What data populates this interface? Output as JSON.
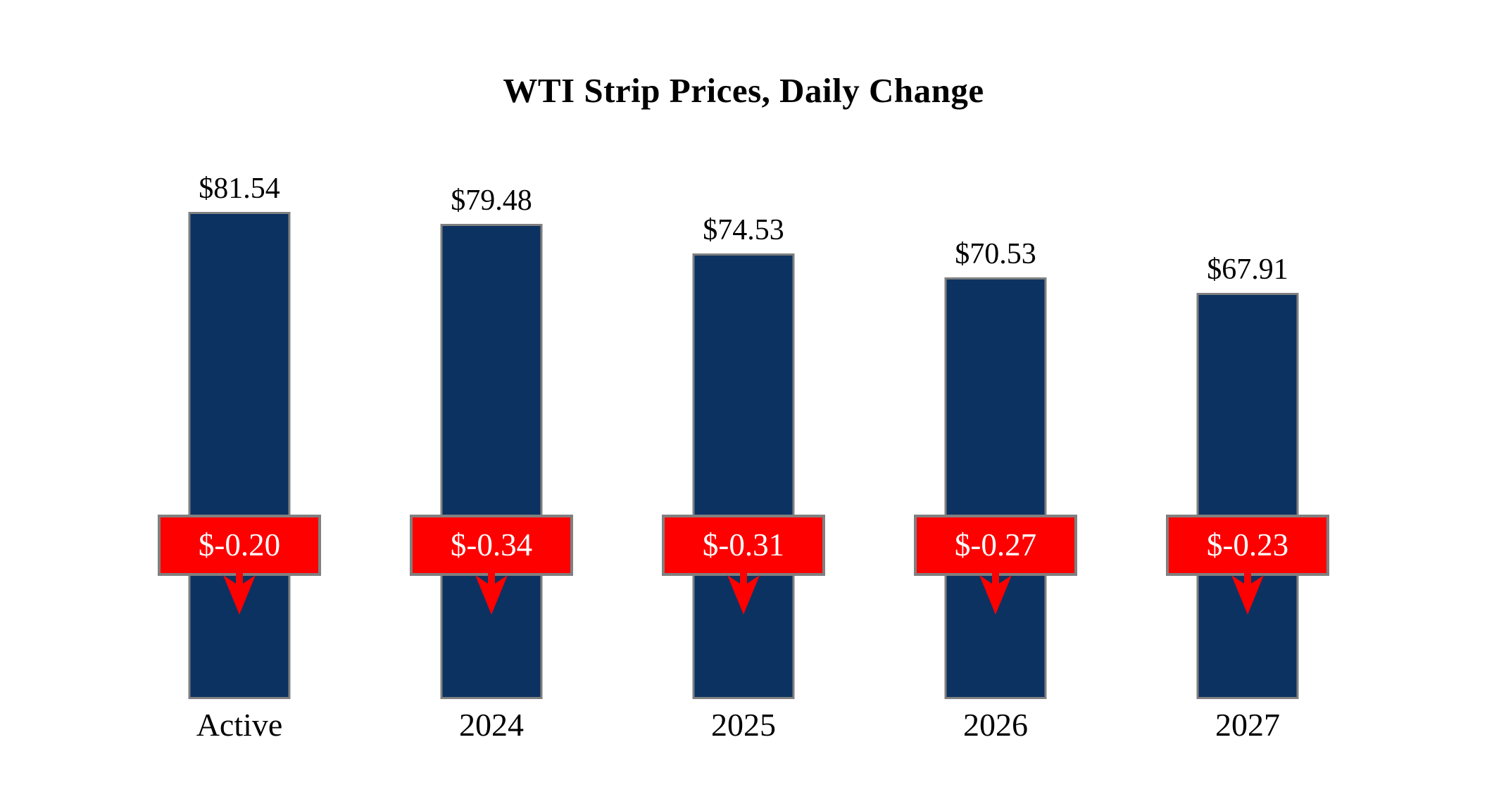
{
  "chart_data": {
    "type": "bar",
    "title": "WTI Strip Prices, Daily Change",
    "categories": [
      "Active",
      "2024",
      "2025",
      "2026",
      "2027"
    ],
    "series": [
      {
        "name": "strip_price",
        "values": [
          81.54,
          79.48,
          74.53,
          70.53,
          67.91
        ],
        "labels": [
          "$81.54",
          "$79.48",
          "$74.53",
          "$70.53",
          "$67.91"
        ]
      },
      {
        "name": "daily_change",
        "values": [
          -0.2,
          -0.34,
          -0.31,
          -0.27,
          -0.23
        ],
        "labels": [
          "$-0.20",
          "$-0.34",
          "$-0.31",
          "$-0.27",
          "$-0.23"
        ]
      }
    ],
    "legend_position": "none",
    "grid": false,
    "value_axis": {
      "visible": false,
      "min": 0
    },
    "annotations": "red boxes with downward arrows show the daily change on each bar",
    "colors": {
      "background": "#ffffff",
      "bar_fill": "#0c3261",
      "bar_border": "#808080",
      "change_box_fill": "#fe0000",
      "change_box_border": "#808080",
      "change_text": "#ffffff",
      "arrow": "#fe0000",
      "label_text": "#000000"
    }
  }
}
